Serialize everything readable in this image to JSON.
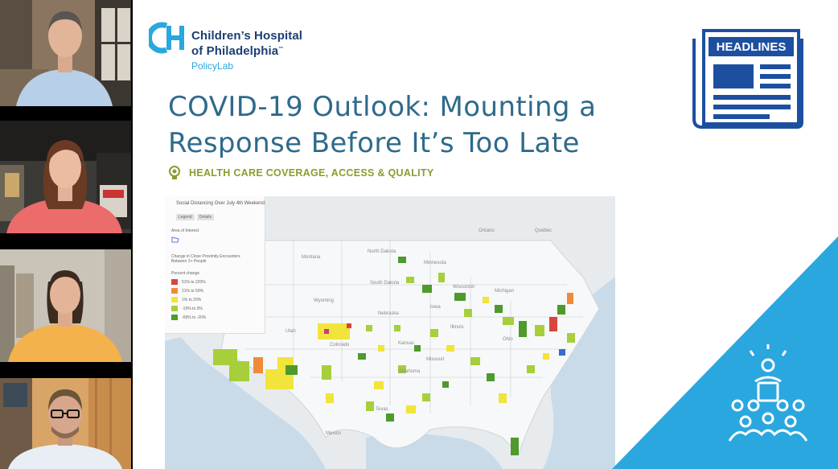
{
  "participants": [
    {
      "name": "participant-1"
    },
    {
      "name": "participant-2"
    },
    {
      "name": "participant-3"
    },
    {
      "name": "participant-4"
    }
  ],
  "logo": {
    "line1": "Children’s Hospital",
    "line2": "of Philadelphia",
    "trademark": "™",
    "sub": "PolicyLab",
    "brand_color": "#1c3e72",
    "accent_color": "#2aa7df"
  },
  "title": {
    "line1": "COVID-19 Outlook: Mounting a",
    "line2": "Response Before It’s Too Late"
  },
  "tag": "HEALTH CARE COVERAGE, ACCESS & QUALITY",
  "headlines_badge": "HEADLINES",
  "map": {
    "panel_title": "Social Distancing Over July 4th Weekend",
    "tabs": [
      "Legend",
      "Details"
    ],
    "area_of_interest": "Area of Interest",
    "change_label": "Change in Close Proximity Encounters Between 2+ People",
    "percent_label": "Percent change",
    "legend": [
      {
        "label": "51% to 220%",
        "color": "#d9453b"
      },
      {
        "label": "21% to 50%",
        "color": "#f08a3b"
      },
      {
        "label": "1% to 20%",
        "color": "#f1e43a"
      },
      {
        "label": "-19% to 0%",
        "color": "#a6cf3b"
      },
      {
        "label": "-69% to -20%",
        "color": "#4e9a2c"
      }
    ],
    "places": [
      "Montana",
      "North Dakota",
      "South Dakota",
      "Wyoming",
      "Nebraska",
      "Kansas",
      "Oklahoma",
      "Texas",
      "Mexico",
      "Minnesota",
      "Wisconsin",
      "Ontario",
      "Quebec",
      "Utah",
      "Colorado",
      "Michigan",
      "Iowa",
      "Illinois",
      "Missouri",
      "Ohio"
    ]
  }
}
